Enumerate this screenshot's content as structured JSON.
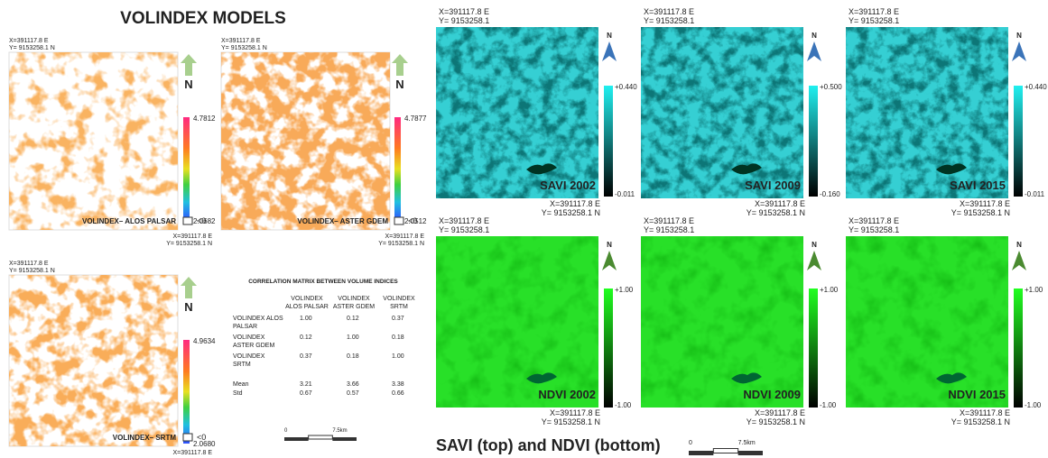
{
  "volindex": {
    "title": "VOLINDEX MODELS",
    "north": "N",
    "maps": [
      {
        "coord_top": [
          "X=391117.8 E",
          "Y= 9153258.1 N"
        ],
        "coord_bottom": [
          "X=391117.8 E",
          "Y= 9153258.1 N"
        ],
        "max": "4.7812",
        "min": "2.0682",
        "label": "VOLINDEX– ALOS PALSAR",
        "nodata": "<0"
      },
      {
        "coord_top": [
          "X=391117.8 E",
          "Y= 9153258.1 N"
        ],
        "coord_bottom": [
          "X=391117.8 E",
          "Y= 9153258.1 N"
        ],
        "max": "4.7877",
        "min": "2.0512",
        "label": "VOLINDEX– ASTER GDEM",
        "nodata": "<0"
      },
      {
        "coord_top": [
          "X=391117.8 E",
          "Y= 9153258.1 N"
        ],
        "coord_bottom": [
          "X=391117.8 E"
        ],
        "max": "4.9634",
        "min": "2.0680",
        "label": "VOLINDEX– SRTM",
        "nodata": "<0"
      }
    ],
    "correlation": {
      "title": "CORRELATION MATRIX BETWEEN VOLUME INDICES",
      "columns": [
        [
          "VOLINDEX",
          "ALOS PALSAR"
        ],
        [
          "VOLINDEX",
          "ASTER GDEM"
        ],
        [
          "VOLINDEX",
          "SRTM"
        ]
      ],
      "rows": [
        {
          "label": [
            "VOLINDEX ALOS",
            "PALSAR"
          ],
          "values": [
            "1.00",
            "0.12",
            "0.37"
          ]
        },
        {
          "label": [
            "VOLINDEX",
            "ASTER GDEM"
          ],
          "values": [
            "0.12",
            "1.00",
            "0.18"
          ]
        },
        {
          "label": [
            "VOLINDEX",
            "SRTM"
          ],
          "values": [
            "0.37",
            "0.18",
            "1.00"
          ]
        },
        {
          "label": [
            "Mean"
          ],
          "values": [
            "3.21",
            "3.66",
            "3.38"
          ]
        },
        {
          "label": [
            "Std"
          ],
          "values": [
            "0.67",
            "0.57",
            "0.66"
          ]
        }
      ]
    },
    "scalebar": [
      "0",
      "7.5km"
    ]
  },
  "indices": {
    "caption": "SAVI (top) and NDVI (bottom)",
    "north": "N",
    "maps": [
      {
        "coord_top": [
          "X=391117.8 E",
          "Y= 9153258.1"
        ],
        "coord_bottom": [
          "X=391117.8 E",
          "Y= 9153258.1 N"
        ],
        "max": "+0.440",
        "min": "-0.011",
        "label": "SAVI 2002"
      },
      {
        "coord_top": [
          "X=391117.8 E",
          "Y= 9153258.1"
        ],
        "coord_bottom": [
          "X=391117.8 E",
          "Y= 9153258.1 N"
        ],
        "max": "+0.500",
        "min": "-0.160",
        "label": "SAVI 2009"
      },
      {
        "coord_top": [
          "X=391117.8 E",
          "Y= 9153258.1"
        ],
        "coord_bottom": [
          "X=391117.8 E",
          "Y= 9153258.1 N"
        ],
        "max": "+0.440",
        "min": "-0.011",
        "label": "SAVI 2015"
      },
      {
        "coord_top": [
          "X=391117.8 E",
          "Y= 9153258.1"
        ],
        "coord_bottom": [
          "X=391117.8 E",
          "Y= 9153258.1 N"
        ],
        "max": "+1.00",
        "min": "-1.00",
        "label": "NDVI 2002"
      },
      {
        "coord_top": [
          "X=391117.8 E",
          "Y= 9153258.1"
        ],
        "coord_bottom": [
          "X=391117.8 E",
          "Y= 9153258.1 N"
        ],
        "max": "+1.00",
        "min": "-1.00",
        "label": "NDVI 2009"
      },
      {
        "coord_top": [
          "X=391117.8 E",
          "Y= 9153258.1"
        ],
        "coord_bottom": [
          "X=391117.8 E",
          "Y= 9153258.1 N"
        ],
        "max": "+1.00",
        "min": "-1.00",
        "label": "NDVI 2015"
      }
    ],
    "scalebar": [
      "0",
      "7.5km"
    ]
  }
}
